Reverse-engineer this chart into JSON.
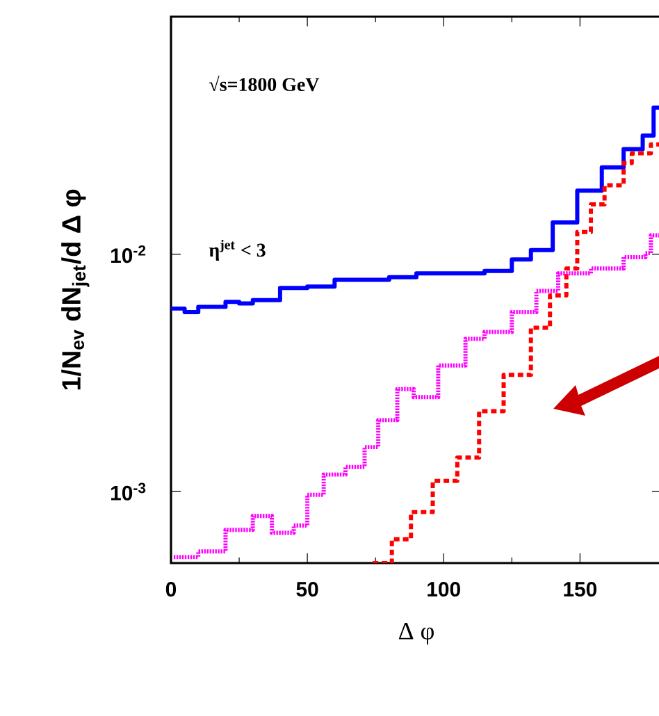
{
  "chart_data": {
    "type": "step",
    "xlabel": "Δ φ",
    "ylabel": "1/N$_{ev}$ dN$_{jet}$/d Δ φ",
    "log": "y",
    "xlim": [
      0,
      180
    ],
    "ylim": [
      0.0005,
      0.1
    ],
    "xticks": [
      0,
      50,
      100,
      150
    ],
    "yticks": [
      {
        "value": 0.001,
        "label": "10$^{-3}$"
      },
      {
        "value": 0.01,
        "label": "10$^{-2}$"
      }
    ],
    "grid": false,
    "marker": "none",
    "annotations": [
      "√s=1800 GeV",
      "η$^{jet}$ < 3"
    ],
    "series": [
      {
        "color": "#0000ff",
        "line_style": "solid",
        "x": [
          0,
          5,
          10,
          20,
          25,
          30,
          40,
          50,
          60,
          80,
          90,
          98,
          115,
          125,
          132,
          140,
          149,
          158,
          166,
          173,
          177,
          180
        ],
        "values": [
          0.0059,
          0.0057,
          0.006,
          0.0063,
          0.0062,
          0.0064,
          0.0072,
          0.0073,
          0.0078,
          0.008,
          0.0083,
          0.0083,
          0.0085,
          0.0095,
          0.0104,
          0.0136,
          0.0185,
          0.0232,
          0.0277,
          0.0316,
          0.0414,
          0.0414
        ]
      },
      {
        "color": "#ff0000",
        "line_style": "dashed",
        "x": [
          74,
          81,
          88,
          96,
          105,
          113,
          122,
          132,
          139,
          145,
          149,
          154,
          159,
          166,
          169,
          176,
          180
        ],
        "values": [
          0.0005,
          0.00063,
          0.00082,
          0.00111,
          0.00139,
          0.00218,
          0.0031,
          0.0049,
          0.0067,
          0.0087,
          0.0124,
          0.0162,
          0.0195,
          0.0242,
          0.0266,
          0.029,
          0.029
        ]
      },
      {
        "color": "#ff00ff",
        "line_style": "dotted",
        "x": [
          1,
          10,
          20,
          30,
          37,
          45,
          50,
          56,
          64,
          71,
          76,
          83,
          89,
          98,
          108,
          115,
          125,
          134,
          142,
          154,
          166,
          174,
          176,
          180
        ],
        "values": [
          0.00053,
          0.00056,
          0.00069,
          0.00079,
          0.00067,
          0.00072,
          0.00097,
          0.00118,
          0.00127,
          0.00154,
          0.002,
          0.0027,
          0.0025,
          0.0034,
          0.0044,
          0.0047,
          0.0057,
          0.007,
          0.0083,
          0.0087,
          0.0097,
          0.0101,
          0.012,
          0.012
        ]
      }
    ]
  }
}
